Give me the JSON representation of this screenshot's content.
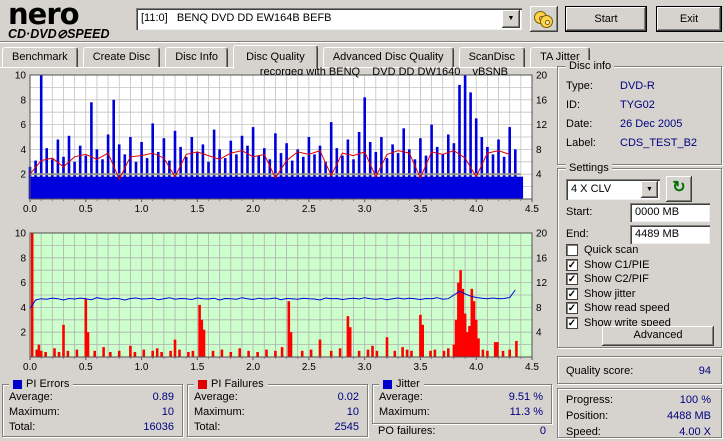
{
  "app": {
    "logo": {
      "name": "nero",
      "sub_left": "CD·DVD",
      "disc_glyph": "⊘",
      "sub_right": "SPEED"
    }
  },
  "icons": {
    "down_arrow": "▼",
    "refresh": "↻",
    "check": "✓"
  },
  "colors": {
    "value_text": "#000080",
    "pi_errors": "#0000cc",
    "pi_failures": "#e00000",
    "jitter": "#0000cc"
  },
  "toolbar": {
    "drive_value": "[11:0]   BENQ DVD DD EW164B BEFB",
    "start_label": "Start",
    "exit_label": "Exit"
  },
  "tabs": [
    {
      "label": "Benchmark"
    },
    {
      "label": "Create Disc"
    },
    {
      "label": "Disc Info"
    },
    {
      "label": "Disc Quality"
    },
    {
      "label": "Advanced Disc Quality"
    },
    {
      "label": "ScanDisc"
    },
    {
      "label": "TA Jitter"
    }
  ],
  "chart_data": [
    {
      "type": "bar",
      "title": "recorded with BENQ    DVD DD DW1640    vBSNB",
      "xlim": [
        0,
        4.5
      ],
      "ylim_left": [
        0,
        10
      ],
      "ylim_right": [
        0,
        20
      ],
      "xlabel": "GB",
      "grid": true,
      "background": "#ffffff",
      "grid_color": "#c2c2c2",
      "x_ticks": [
        "0.0",
        "0.5",
        "1.0",
        "1.5",
        "2.0",
        "2.5",
        "3.0",
        "3.5",
        "4.0",
        "4.5"
      ],
      "left_ticks": [
        10,
        8,
        6,
        4,
        2
      ],
      "right_ticks": [
        20,
        16,
        12,
        8,
        4
      ],
      "series": [
        {
          "name": "PI Errors",
          "type": "bar",
          "color": "#0000dd",
          "bar_width": 2.6,
          "floor": 1.8,
          "floor_end": 4.42,
          "x_step": 0.05,
          "values": [
            2.6,
            3.1,
            10,
            4.1,
            3.2,
            4.8,
            3.4,
            5.1,
            3.0,
            4.3,
            3.5,
            7.8,
            4.0,
            3.2,
            5.2,
            8.0,
            4.4,
            3.6,
            5.0,
            3.0,
            4.6,
            3.3,
            6.1,
            3.8,
            4.9,
            3.1,
            5.5,
            4.2,
            3.4,
            5.0,
            3.8,
            4.4,
            3.0,
            5.6,
            4.0,
            3.3,
            4.7,
            3.6,
            5.1,
            4.3,
            5.8,
            3.5,
            4.1,
            3.2,
            5.3,
            3.7,
            4.5,
            3.1,
            4.0,
            3.4,
            5.0,
            3.6,
            4.3,
            3.0,
            6.2,
            4.1,
            3.5,
            4.8,
            3.2,
            5.4,
            8.2,
            4.6,
            3.8,
            5.0,
            3.3,
            4.4,
            3.7,
            5.7,
            4.0,
            3.2,
            4.9,
            3.5,
            6.0,
            4.2,
            3.6,
            5.2,
            4.5,
            9.2,
            10,
            8.6,
            6.5,
            5.0,
            4.2,
            3.6,
            4.8,
            3.4,
            5.8,
            4.0
          ]
        },
        {
          "name": "read speed 4X CLV",
          "type": "line",
          "color": "#9a9a8c",
          "width": 2,
          "points": [
            [
              0,
              2
            ],
            [
              4.4,
              2
            ]
          ]
        },
        {
          "name": "write speed",
          "type": "line",
          "color": "#e00000",
          "width": 1,
          "x_step": 0.1,
          "values": [
            2.0,
            3.1,
            3.3,
            2.6,
            3.4,
            3.6,
            3.2,
            3.7,
            1.6,
            3.4,
            3.5,
            3.7,
            3.3,
            1.8,
            3.6,
            3.8,
            3.5,
            3.2,
            3.7,
            3.9,
            3.4,
            3.6,
            1.7,
            3.1,
            3.8,
            3.6,
            3.9,
            1.9,
            3.7,
            3.5,
            3.8,
            1.8,
            3.6,
            3.9,
            3.7,
            1.7,
            3.8,
            3.6,
            3.9,
            3.3,
            1.8,
            3.7,
            3.9,
            3.6
          ]
        }
      ]
    },
    {
      "type": "bar",
      "title": "",
      "xlim": [
        0,
        4.5
      ],
      "ylim_left": [
        0,
        10
      ],
      "ylim_right": [
        0,
        20
      ],
      "xlabel": "GB",
      "grid": true,
      "background": "#ccffcc",
      "grid_color": "#b0b0b0",
      "x_ticks": [
        "0.0",
        "0.5",
        "1.0",
        "1.5",
        "2.0",
        "2.5",
        "3.0",
        "3.5",
        "4.0",
        "4.5"
      ],
      "left_ticks": [
        10,
        8,
        6,
        4,
        2
      ],
      "right_ticks": [
        20,
        16,
        12,
        8,
        4
      ],
      "series": [
        {
          "name": "PI Failures",
          "type": "bar",
          "color": "#ff0000",
          "bar_width": 2.6,
          "points": [
            [
              0.02,
              10
            ],
            [
              0.06,
              0.6
            ],
            [
              0.08,
              1.0
            ],
            [
              0.1,
              0.5
            ],
            [
              0.14,
              0.4
            ],
            [
              0.22,
              0.7
            ],
            [
              0.26,
              0.4
            ],
            [
              0.3,
              2.6
            ],
            [
              0.34,
              0.5
            ],
            [
              0.42,
              0.6
            ],
            [
              0.5,
              4.7
            ],
            [
              0.52,
              2.0
            ],
            [
              0.58,
              0.5
            ],
            [
              0.66,
              0.8
            ],
            [
              0.72,
              0.4
            ],
            [
              0.8,
              0.5
            ],
            [
              0.9,
              0.9
            ],
            [
              0.94,
              0.4
            ],
            [
              1.02,
              0.6
            ],
            [
              1.1,
              0.5
            ],
            [
              1.14,
              0.7
            ],
            [
              1.18,
              0.4
            ],
            [
              1.26,
              0.5
            ],
            [
              1.3,
              1.4
            ],
            [
              1.34,
              0.6
            ],
            [
              1.42,
              0.4
            ],
            [
              1.46,
              0.5
            ],
            [
              1.52,
              4.2
            ],
            [
              1.54,
              3.0
            ],
            [
              1.56,
              2.2
            ],
            [
              1.64,
              0.5
            ],
            [
              1.72,
              0.6
            ],
            [
              1.8,
              0.4
            ],
            [
              1.88,
              0.7
            ],
            [
              1.96,
              0.5
            ],
            [
              2.04,
              0.4
            ],
            [
              2.12,
              0.6
            ],
            [
              2.2,
              0.5
            ],
            [
              2.26,
              0.8
            ],
            [
              2.32,
              4.5
            ],
            [
              2.34,
              2.0
            ],
            [
              2.44,
              0.5
            ],
            [
              2.52,
              0.6
            ],
            [
              2.6,
              1.4
            ],
            [
              2.7,
              0.5
            ],
            [
              2.78,
              0.7
            ],
            [
              2.85,
              3.3
            ],
            [
              2.87,
              2.4
            ],
            [
              2.95,
              0.5
            ],
            [
              3.03,
              0.6
            ],
            [
              3.07,
              0.9
            ],
            [
              3.11,
              0.5
            ],
            [
              3.2,
              1.6
            ],
            [
              3.27,
              0.5
            ],
            [
              3.34,
              0.8
            ],
            [
              3.38,
              0.6
            ],
            [
              3.42,
              0.5
            ],
            [
              3.5,
              3.4
            ],
            [
              3.52,
              2.6
            ],
            [
              3.59,
              0.5
            ],
            [
              3.63,
              0.6
            ],
            [
              3.71,
              0.5
            ],
            [
              3.75,
              0.7
            ],
            [
              3.8,
              1.0
            ],
            [
              3.82,
              3.0
            ],
            [
              3.84,
              6.0
            ],
            [
              3.86,
              7.0
            ],
            [
              3.88,
              5.5
            ],
            [
              3.9,
              3.5
            ],
            [
              3.92,
              2.0
            ],
            [
              3.94,
              2.5
            ],
            [
              3.96,
              5.5
            ],
            [
              3.98,
              4.5
            ],
            [
              4.0,
              3.0
            ],
            [
              4.02,
              1.5
            ],
            [
              4.06,
              0.6
            ],
            [
              4.1,
              0.5
            ],
            [
              4.17,
              1.2
            ],
            [
              4.19,
              1.2
            ],
            [
              4.24,
              0.5
            ],
            [
              4.3,
              0.6
            ],
            [
              4.36,
              1.3
            ]
          ]
        },
        {
          "name": "Jitter",
          "type": "line",
          "color": "#0000dd",
          "width": 1,
          "x_step": 0.05,
          "values": [
            3.9,
            4.6,
            4.7,
            4.65,
            4.75,
            4.7,
            4.6,
            4.72,
            4.68,
            4.75,
            4.7,
            4.62,
            4.78,
            4.7,
            4.66,
            4.74,
            4.7,
            4.6,
            4.72,
            4.76,
            4.68,
            4.7,
            4.74,
            4.62,
            4.7,
            4.78,
            4.66,
            4.72,
            4.7,
            4.64,
            4.76,
            4.7,
            4.68,
            4.74,
            4.6,
            4.72,
            4.7,
            4.66,
            4.78,
            4.7,
            4.64,
            4.74,
            4.68,
            4.7,
            4.76,
            4.62,
            4.72,
            4.7,
            4.66,
            4.74,
            4.7,
            4.68,
            4.6,
            4.76,
            4.7,
            4.72,
            4.64,
            4.7,
            4.74,
            4.68,
            4.78,
            4.7,
            4.66,
            4.72,
            4.62,
            4.7,
            4.76,
            4.68,
            4.74,
            4.7,
            4.64,
            4.72,
            4.7,
            4.78,
            4.66,
            4.7,
            5.0,
            5.3,
            5.1,
            4.9,
            4.8,
            4.74,
            4.7,
            4.76,
            4.7,
            4.72,
            4.8,
            5.4
          ]
        }
      ]
    }
  ],
  "disc_info": {
    "title": "Disc info",
    "rows": [
      {
        "label": "Type:",
        "value": "DVD-R"
      },
      {
        "label": "ID:",
        "value": "TYG02"
      },
      {
        "label": "Date:",
        "value": "26 Dec 2005"
      },
      {
        "label": "Label:",
        "value": "CDS_TEST_B2"
      }
    ]
  },
  "settings": {
    "title": "Settings",
    "speed_value": "4 X CLV",
    "start_label": "Start:",
    "start_value": "0000 MB",
    "end_label": "End:",
    "end_value": "4489 MB",
    "checkboxes": [
      {
        "label": "Quick scan",
        "mark": ""
      },
      {
        "label": "Show C1/PIE",
        "mark": "✓"
      },
      {
        "label": "Show C2/PIF",
        "mark": "✓"
      },
      {
        "label": "Show jitter",
        "mark": "✓"
      },
      {
        "label": "Show read speed",
        "mark": "✓"
      },
      {
        "label": "Show write speed",
        "mark": "✓"
      }
    ],
    "advanced_label": "Advanced"
  },
  "quality": {
    "label": "Quality score:",
    "value": "94"
  },
  "progress": {
    "rows": [
      {
        "label": "Progress:",
        "value": "100 %"
      },
      {
        "label": "Position:",
        "value": "4488 MB"
      },
      {
        "label": "Speed:",
        "value": "4.00 X"
      }
    ]
  },
  "stats": {
    "pi_errors": {
      "title": "PI Errors",
      "rows": [
        {
          "label": "Average:",
          "value": "0.89"
        },
        {
          "label": "Maximum:",
          "value": "10"
        },
        {
          "label": "Total:",
          "value": "16036"
        }
      ]
    },
    "pi_failures": {
      "title": "PI Failures",
      "rows": [
        {
          "label": "Average:",
          "value": "0.02"
        },
        {
          "label": "Maximum:",
          "value": "10"
        },
        {
          "label": "Total:",
          "value": "2545"
        }
      ]
    },
    "jitter": {
      "title": "Jitter",
      "rows": [
        {
          "label": "Average:",
          "value": "9.51 %"
        },
        {
          "label": "Maximum:",
          "value": "11.3 %"
        }
      ]
    },
    "po_failures": {
      "label": "PO failures:",
      "value": "0"
    }
  }
}
